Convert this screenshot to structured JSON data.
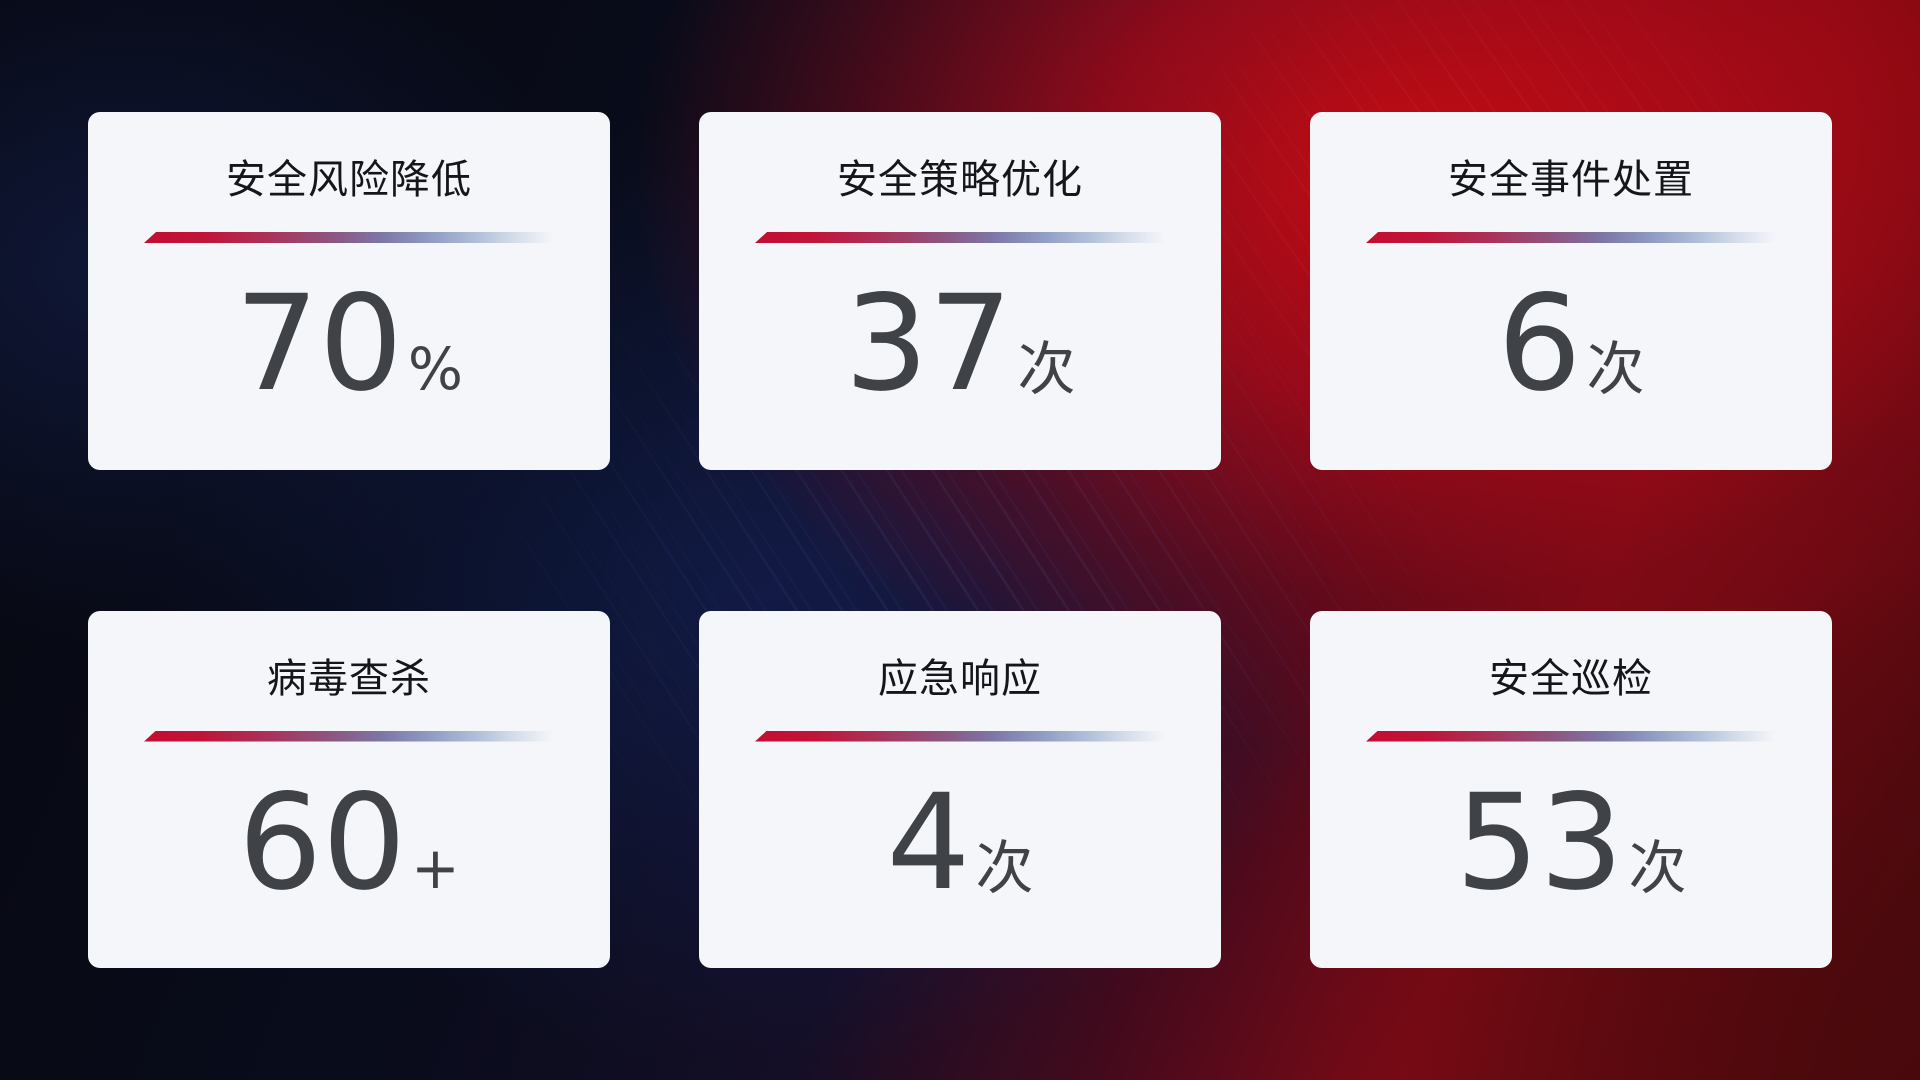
{
  "cards": [
    {
      "title": "安全风险降低",
      "value": "70",
      "unit": "%"
    },
    {
      "title": "安全策略优化",
      "value": "37",
      "unit": "次"
    },
    {
      "title": "安全事件处置",
      "value": "6",
      "unit": "次"
    },
    {
      "title": "病毒查杀",
      "value": "60",
      "unit": "+"
    },
    {
      "title": "应急响应",
      "value": "4",
      "unit": "次"
    },
    {
      "title": "安全巡检",
      "value": "53",
      "unit": "次"
    }
  ],
  "colors": {
    "card_bg": "#f5f6fa",
    "title_text": "#14161b",
    "value_text": "#3f4246",
    "divider_start_red": "#c30e33",
    "divider_mid_purple": "#7d76a6",
    "divider_end_blue": "#b3c2da",
    "bg_navy": "#090c1b",
    "bg_blue_glow": "#152664",
    "bg_bright_red": "#cb0c12",
    "bg_dark_red": "#430a0e"
  }
}
